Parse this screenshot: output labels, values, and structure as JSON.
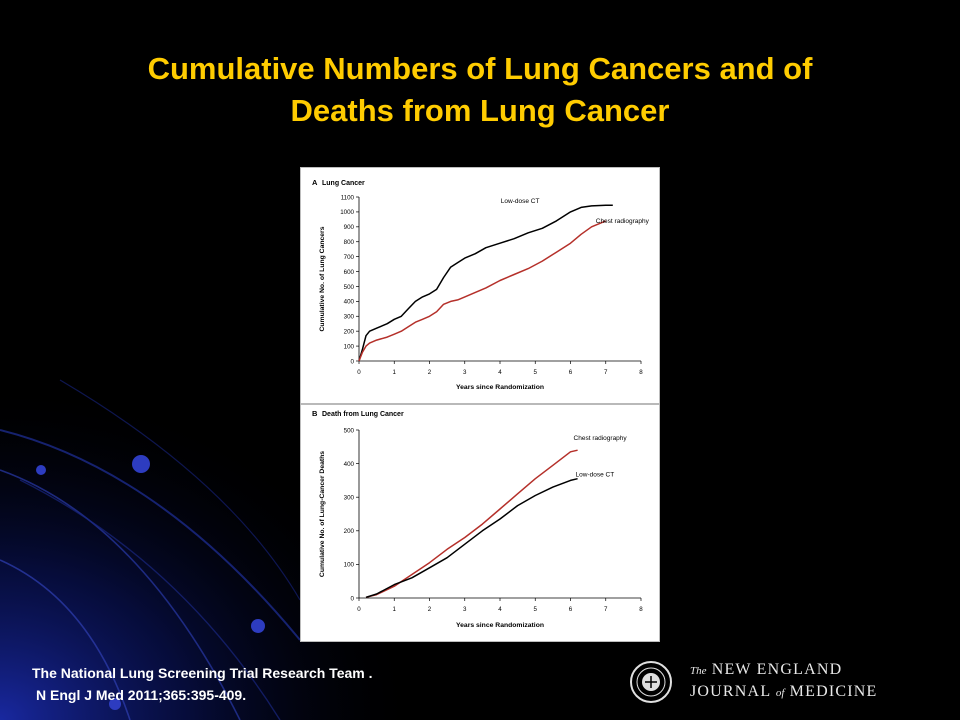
{
  "slide": {
    "title_line1": "Cumulative Numbers of Lung Cancers and of",
    "title_line2": "Deaths from Lung Cancer",
    "citation_line1": "The National Lung Screening Trial Research Team .",
    "citation_line2": "N Engl J Med 2011;365:395-409.",
    "journal_the": "The",
    "journal_name1": "NEW ENGLAND",
    "journal_name2a": "JOURNAL",
    "journal_of": "of",
    "journal_name2b": "MEDICINE"
  },
  "colors": {
    "title": "#ffcc00",
    "low_dose_ct": "#000000",
    "chest_radiography": "#b5302a"
  },
  "chart_data": [
    {
      "type": "line",
      "panel_letter": "A",
      "title": "Lung Cancer",
      "xlabel": "Years since Randomization",
      "ylabel": "Cumulative No. of Lung Cancers",
      "xlim": [
        0,
        8
      ],
      "ylim": [
        0,
        1100
      ],
      "xticks": [
        0,
        1,
        2,
        3,
        4,
        5,
        6,
        7,
        8
      ],
      "yticks": [
        0,
        100,
        200,
        300,
        400,
        500,
        600,
        700,
        800,
        900,
        1000,
        1100
      ],
      "series": [
        {
          "name": "Low-dose CT",
          "x": [
            0,
            0.1,
            0.2,
            0.3,
            0.5,
            0.8,
            1.0,
            1.2,
            1.4,
            1.6,
            1.8,
            2.0,
            2.2,
            2.4,
            2.6,
            2.8,
            3.0,
            3.3,
            3.6,
            4.0,
            4.4,
            4.8,
            5.2,
            5.6,
            6.0,
            6.3,
            6.6,
            7.0,
            7.2
          ],
          "y": [
            0,
            80,
            170,
            200,
            220,
            250,
            280,
            300,
            350,
            400,
            430,
            450,
            480,
            560,
            630,
            660,
            690,
            720,
            760,
            790,
            820,
            860,
            890,
            940,
            1000,
            1030,
            1040,
            1045,
            1045
          ]
        },
        {
          "name": "Chest radiography",
          "x": [
            0,
            0.1,
            0.2,
            0.3,
            0.5,
            0.8,
            1.0,
            1.2,
            1.4,
            1.6,
            1.8,
            2.0,
            2.2,
            2.4,
            2.6,
            2.8,
            3.0,
            3.3,
            3.6,
            4.0,
            4.4,
            4.8,
            5.2,
            5.6,
            6.0,
            6.3,
            6.6,
            7.0
          ],
          "y": [
            0,
            60,
            100,
            120,
            140,
            160,
            180,
            200,
            230,
            260,
            280,
            300,
            330,
            380,
            400,
            410,
            430,
            460,
            490,
            540,
            580,
            620,
            670,
            730,
            790,
            850,
            900,
            940
          ]
        }
      ],
      "legend": "inline labels at line ends"
    },
    {
      "type": "line",
      "panel_letter": "B",
      "title": "Death from Lung Cancer",
      "xlabel": "Years since Randomization",
      "ylabel": "Cumulative No. of Lung-Cancer Deaths",
      "xlim": [
        0,
        8
      ],
      "ylim": [
        0,
        500
      ],
      "xticks": [
        0,
        1,
        2,
        3,
        4,
        5,
        6,
        7,
        8
      ],
      "yticks": [
        0,
        100,
        200,
        300,
        400,
        500
      ],
      "series": [
        {
          "name": "Chest radiography",
          "x": [
            0.2,
            0.5,
            1.0,
            1.5,
            2.0,
            2.5,
            3.0,
            3.5,
            4.0,
            4.5,
            5.0,
            5.5,
            6.0,
            6.2
          ],
          "y": [
            2,
            10,
            35,
            70,
            105,
            145,
            180,
            220,
            265,
            310,
            355,
            395,
            435,
            440
          ]
        },
        {
          "name": "Low-dose CT",
          "x": [
            0.2,
            0.5,
            1.0,
            1.5,
            2.0,
            2.5,
            3.0,
            3.5,
            4.0,
            4.5,
            5.0,
            5.5,
            6.0,
            6.2
          ],
          "y": [
            2,
            12,
            40,
            60,
            90,
            120,
            160,
            200,
            235,
            275,
            305,
            330,
            350,
            355
          ]
        }
      ],
      "legend": "inline labels at line ends"
    }
  ]
}
